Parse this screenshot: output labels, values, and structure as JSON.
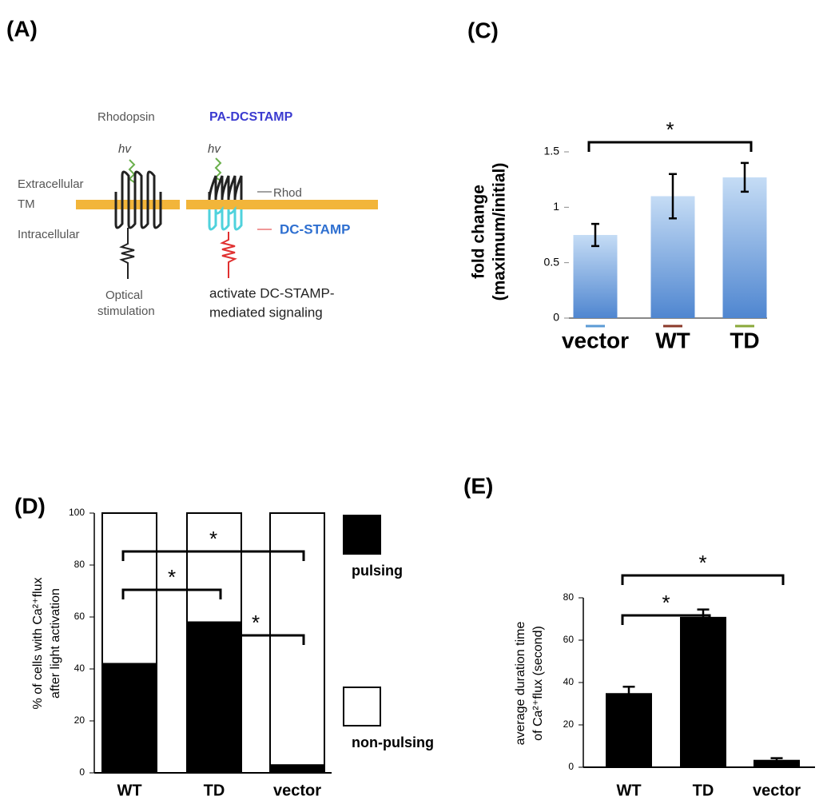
{
  "diagram": {
    "label": "(A)",
    "rhodopsin": "Rhodopsin",
    "pa_dcstamp": "PA-DCSTAMP",
    "hv_left": "hv",
    "hv_right": "hv",
    "extracellular": "Extracellular",
    "tm": "TM",
    "intracellular": "Intracellular",
    "rhod": "Rhod",
    "dc_stamp": "DC-STAMP",
    "optical": [
      "Optical",
      "stimulation"
    ],
    "activate": [
      "activate DC-STAMP-",
      "mediated signaling"
    ]
  },
  "chart_data": [
    {
      "type": "bar",
      "label": "(C)",
      "ylabel": [
        "fold  change",
        "(maximum/initial)"
      ],
      "categories": [
        "vector",
        "WT",
        "TD"
      ],
      "category_colors": [
        "#5b9bd5",
        "#8b3a2a",
        "#8aa83a"
      ],
      "values": [
        0.75,
        1.1,
        1.27
      ],
      "errors": [
        0.1,
        0.2,
        0.13
      ],
      "color": "#6f9fdc",
      "ylim": [
        0,
        1.5
      ],
      "yticks": [
        0,
        0.5,
        1,
        1.5
      ],
      "significance": [
        {
          "pair": [
            "vector",
            "TD"
          ],
          "label": "*"
        }
      ]
    },
    {
      "type": "stacked_bar",
      "label": "(D)",
      "ylabel": [
        "% of cells with Ca²⁺flux",
        "after light activation"
      ],
      "categories": [
        "WT",
        "TD",
        "vector"
      ],
      "series": [
        {
          "name": "pulsing",
          "color": "#000000",
          "values": [
            42,
            58,
            3
          ]
        },
        {
          "name": "non-pulsing",
          "color": "#ffffff",
          "values": [
            58,
            42,
            97
          ]
        }
      ],
      "ylim": [
        0,
        100
      ],
      "yticks": [
        0,
        20,
        40,
        60,
        80,
        100
      ],
      "significance": [
        {
          "pair": [
            "WT",
            "vector"
          ],
          "label": "*"
        },
        {
          "pair": [
            "WT",
            "TD"
          ],
          "label": "*"
        },
        {
          "pair": [
            "TD",
            "vector"
          ],
          "label": "*"
        }
      ]
    },
    {
      "type": "bar",
      "label": "(E)",
      "ylabel": [
        "average duration time",
        "of Ca²⁺flux (second)"
      ],
      "categories": [
        "WT",
        "TD",
        "vector"
      ],
      "values": [
        35,
        71,
        3.5
      ],
      "errors": [
        3,
        3.5,
        0.8
      ],
      "color": "#000000",
      "ylim": [
        0,
        80
      ],
      "yticks": [
        0,
        20,
        40,
        60,
        80
      ],
      "significance": [
        {
          "pair": [
            "WT",
            "TD"
          ],
          "label": "*"
        },
        {
          "pair": [
            "WT",
            "vector"
          ],
          "label": "*"
        }
      ]
    }
  ]
}
